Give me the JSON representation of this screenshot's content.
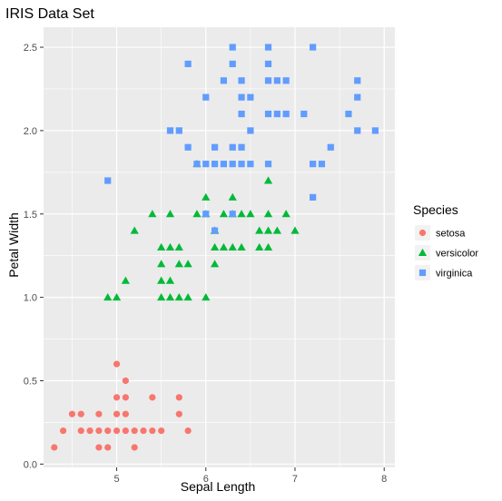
{
  "chart_data": {
    "type": "scatter",
    "title": "IRIS Data Set",
    "xlabel": "Sepal Length",
    "ylabel": "Petal Width",
    "xlim": [
      4.18,
      8.12
    ],
    "ylim": [
      -0.02,
      2.62
    ],
    "xticks": [
      "5",
      "6",
      "7",
      "8"
    ],
    "xtick_values": [
      5,
      6,
      7,
      8
    ],
    "yticks": [
      "0.0",
      "0.5",
      "1.0",
      "1.5",
      "2.0",
      "2.5"
    ],
    "ytick_values": [
      0,
      0.5,
      1,
      1.5,
      2,
      2.5
    ],
    "grid": true,
    "panel_background": "#ebebeb",
    "grid_color": "#ffffff",
    "legend": {
      "title": "Species",
      "placement": "right"
    },
    "series": [
      {
        "name": "setosa",
        "color": "#f8766d",
        "marker": "circle",
        "points": [
          [
            4.3,
            0.1
          ],
          [
            4.4,
            0.2
          ],
          [
            4.5,
            0.3
          ],
          [
            4.6,
            0.2
          ],
          [
            4.6,
            0.3
          ],
          [
            4.7,
            0.2
          ],
          [
            4.8,
            0.2
          ],
          [
            4.8,
            0.3
          ],
          [
            4.9,
            0.1
          ],
          [
            4.9,
            0.2
          ],
          [
            5.0,
            0.2
          ],
          [
            5.0,
            0.3
          ],
          [
            5.0,
            0.4
          ],
          [
            5.0,
            0.6
          ],
          [
            5.1,
            0.2
          ],
          [
            5.1,
            0.3
          ],
          [
            5.1,
            0.4
          ],
          [
            5.1,
            0.5
          ],
          [
            5.2,
            0.1
          ],
          [
            5.2,
            0.2
          ],
          [
            5.3,
            0.2
          ],
          [
            5.4,
            0.2
          ],
          [
            5.4,
            0.4
          ],
          [
            5.5,
            0.2
          ],
          [
            5.7,
            0.3
          ],
          [
            5.7,
            0.4
          ],
          [
            5.8,
            0.2
          ],
          [
            4.8,
            0.1
          ]
        ]
      },
      {
        "name": "versicolor",
        "color": "#00ba38",
        "marker": "triangle",
        "points": [
          [
            4.9,
            1.0
          ],
          [
            5.0,
            1.0
          ],
          [
            5.1,
            1.1
          ],
          [
            5.2,
            1.4
          ],
          [
            5.4,
            1.5
          ],
          [
            5.5,
            1.0
          ],
          [
            5.5,
            1.1
          ],
          [
            5.5,
            1.2
          ],
          [
            5.5,
            1.3
          ],
          [
            5.6,
            1.0
          ],
          [
            5.6,
            1.1
          ],
          [
            5.6,
            1.3
          ],
          [
            5.7,
            1.0
          ],
          [
            5.7,
            1.2
          ],
          [
            5.7,
            1.3
          ],
          [
            5.8,
            1.0
          ],
          [
            5.8,
            1.2
          ],
          [
            5.9,
            1.5
          ],
          [
            6.0,
            1.0
          ],
          [
            6.0,
            1.5
          ],
          [
            6.0,
            1.6
          ],
          [
            6.1,
            1.2
          ],
          [
            6.1,
            1.3
          ],
          [
            6.1,
            1.4
          ],
          [
            6.2,
            1.3
          ],
          [
            6.2,
            1.5
          ],
          [
            6.3,
            1.3
          ],
          [
            6.3,
            1.5
          ],
          [
            6.3,
            1.6
          ],
          [
            6.4,
            1.3
          ],
          [
            6.4,
            1.5
          ],
          [
            6.5,
            1.5
          ],
          [
            6.6,
            1.3
          ],
          [
            6.6,
            1.4
          ],
          [
            6.7,
            1.4
          ],
          [
            6.7,
            1.5
          ],
          [
            6.7,
            1.7
          ],
          [
            6.8,
            1.4
          ],
          [
            6.9,
            1.5
          ],
          [
            7.0,
            1.4
          ],
          [
            5.6,
            1.5
          ],
          [
            5.9,
            1.8
          ],
          [
            6.1,
            1.4
          ],
          [
            6.7,
            1.3
          ]
        ]
      },
      {
        "name": "virginica",
        "color": "#619cff",
        "marker": "square",
        "points": [
          [
            4.9,
            1.7
          ],
          [
            5.6,
            2.0
          ],
          [
            5.7,
            2.0
          ],
          [
            5.8,
            1.9
          ],
          [
            5.8,
            2.4
          ],
          [
            5.9,
            1.8
          ],
          [
            6.0,
            1.8
          ],
          [
            6.1,
            1.8
          ],
          [
            6.2,
            1.8
          ],
          [
            6.3,
            1.8
          ],
          [
            6.4,
            1.8
          ],
          [
            6.5,
            1.8
          ],
          [
            6.7,
            1.8
          ],
          [
            6.3,
            1.9
          ],
          [
            6.4,
            1.9
          ],
          [
            6.5,
            2.0
          ],
          [
            6.4,
            2.1
          ],
          [
            6.4,
            2.2
          ],
          [
            6.5,
            2.2
          ],
          [
            6.2,
            2.3
          ],
          [
            6.4,
            2.3
          ],
          [
            6.3,
            2.4
          ],
          [
            6.3,
            2.5
          ],
          [
            6.7,
            2.5
          ],
          [
            6.7,
            2.4
          ],
          [
            6.7,
            2.3
          ],
          [
            6.8,
            2.3
          ],
          [
            6.9,
            2.3
          ],
          [
            6.7,
            2.1
          ],
          [
            6.8,
            2.1
          ],
          [
            6.9,
            2.1
          ],
          [
            7.1,
            2.1
          ],
          [
            7.2,
            1.6
          ],
          [
            7.2,
            1.8
          ],
          [
            7.2,
            2.5
          ],
          [
            7.3,
            1.8
          ],
          [
            7.4,
            1.9
          ],
          [
            7.6,
            2.1
          ],
          [
            7.7,
            2.0
          ],
          [
            7.7,
            2.2
          ],
          [
            7.7,
            2.3
          ],
          [
            7.9,
            2.0
          ],
          [
            6.0,
            1.5
          ],
          [
            6.1,
            1.4
          ],
          [
            6.3,
            1.5
          ],
          [
            6.1,
            1.9
          ],
          [
            6.0,
            2.2
          ]
        ]
      }
    ]
  }
}
